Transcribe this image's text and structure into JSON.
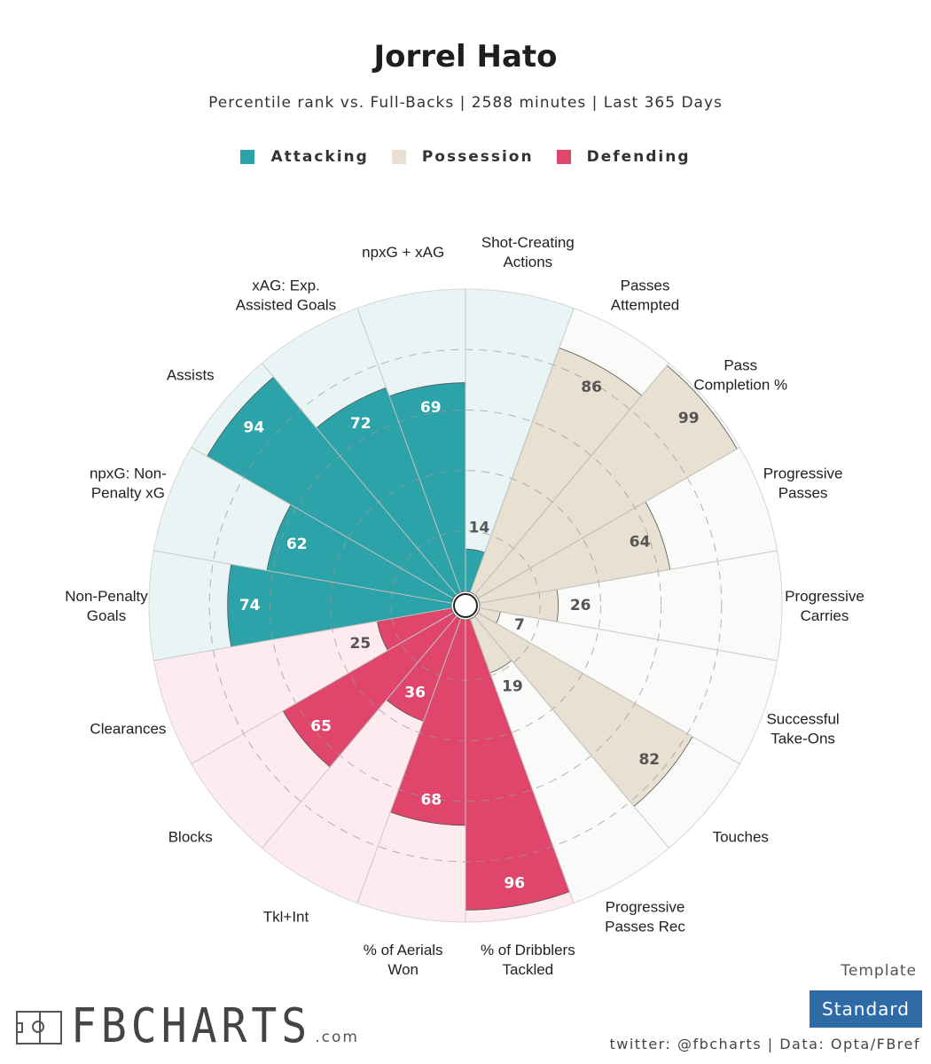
{
  "title": "Jorrel Hato",
  "subtitle": "Percentile rank vs. Full-Backs | 2588 minutes | Last 365 Days",
  "legend": [
    {
      "label": "Attacking",
      "color": "#2ba3a8"
    },
    {
      "label": "Possession",
      "color": "#e8e1d2"
    },
    {
      "label": "Defending",
      "color": "#e0456b"
    }
  ],
  "colors": {
    "Attacking": {
      "fill": "#2ba3a8",
      "bg": "#e9f5f5",
      "text": "#ffffff"
    },
    "Possession": {
      "fill": "#e8e1d2",
      "bg": "#fafaf8",
      "text": "#555555"
    },
    "Defending": {
      "fill": "#e0456b",
      "bg": "#fdebef",
      "text": "#ffffff"
    },
    "low_value_text": "#555555"
  },
  "chart_data": {
    "type": "polar-bar",
    "title": "Jorrel Hato",
    "subtitle": "Percentile rank vs. Full-Backs | 2588 minutes | Last 365 Days",
    "rlim": [
      0,
      100
    ],
    "grid": true,
    "legend_position": "top",
    "categories": [
      {
        "label": [
          "Shot-Creating",
          "Actions"
        ],
        "value": 14,
        "group": "Attacking"
      },
      {
        "label": [
          "Passes",
          "Attempted"
        ],
        "value": 86,
        "group": "Possession"
      },
      {
        "label": [
          "Pass",
          "Completion %"
        ],
        "value": 99,
        "group": "Possession"
      },
      {
        "label": [
          "Progressive",
          "Passes"
        ],
        "value": 64,
        "group": "Possession"
      },
      {
        "label": [
          "Progressive",
          "Carries"
        ],
        "value": 26,
        "group": "Possession"
      },
      {
        "label": [
          "Successful",
          "Take-Ons"
        ],
        "value": 7,
        "group": "Possession"
      },
      {
        "label": [
          "Touches"
        ],
        "value": 82,
        "group": "Possession"
      },
      {
        "label": [
          "Progressive",
          "Passes Rec"
        ],
        "value": 19,
        "group": "Possession"
      },
      {
        "label": [
          "% of Dribblers",
          "Tackled"
        ],
        "value": 96,
        "group": "Defending"
      },
      {
        "label": [
          "% of Aerials",
          "Won"
        ],
        "value": 68,
        "group": "Defending"
      },
      {
        "label": [
          "Tkl+Int"
        ],
        "value": 36,
        "group": "Defending"
      },
      {
        "label": [
          "Blocks"
        ],
        "value": 65,
        "group": "Defending"
      },
      {
        "label": [
          "Clearances"
        ],
        "value": 25,
        "group": "Defending"
      },
      {
        "label": [
          "Non-Penalty",
          "Goals"
        ],
        "value": 74,
        "group": "Attacking"
      },
      {
        "label": [
          "npxG: Non-",
          "Penalty xG"
        ],
        "value": 62,
        "group": "Attacking"
      },
      {
        "label": [
          "Assists"
        ],
        "value": 94,
        "group": "Attacking"
      },
      {
        "label": [
          "xAG: Exp.",
          "Assisted Goals"
        ],
        "value": 72,
        "group": "Attacking"
      },
      {
        "label": [
          "npxG + xAG"
        ],
        "value": 69,
        "group": "Attacking"
      }
    ]
  },
  "footer": {
    "logo_text": "FBCHARTS",
    "logo_suffix": ".com",
    "template_label": "Template",
    "template_value": "Standard",
    "credits": "twitter: @fbcharts | Data: Opta/FBref"
  }
}
